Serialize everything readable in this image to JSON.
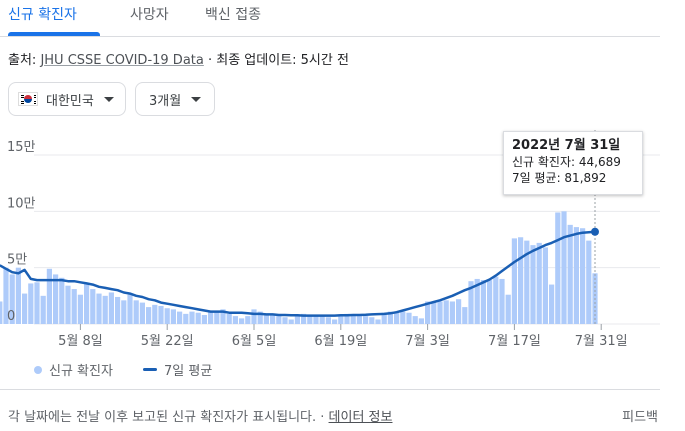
{
  "tabs": [
    {
      "label": "신규 확진자",
      "active": true
    },
    {
      "label": "사망자",
      "active": false
    },
    {
      "label": "백신 접종",
      "active": false
    }
  ],
  "source": {
    "prefix": "출처: ",
    "link": "JHU CSSE COVID-19 Data",
    "suffix": " · 최종 업데이트: 5시간 전"
  },
  "filters": {
    "country": "대한민국",
    "period": "3개월"
  },
  "tooltip": {
    "date": "2022년 7월 31일",
    "cases_line": "신규 확진자: 44,689",
    "avg_line": "7일 평균: 81,892"
  },
  "legend": {
    "cases": "신규 확진자",
    "avg": "7일 평균"
  },
  "footer": {
    "text": "각 날짜에는 전날 이후 보고된 신규 확진자가 표시됩니다. · ",
    "link": "데이터 정보",
    "feedback": "피드백"
  },
  "colors": {
    "accent": "#1a73e8",
    "bars": "#aecbfa",
    "line": "#1a5fb4",
    "grid": "#e8eaed"
  },
  "chart_data": {
    "type": "bar",
    "x_start": "2022-05-01",
    "x_end": "2022-07-31",
    "ylim": [
      0,
      150000
    ],
    "yticks": [
      {
        "value": 0,
        "label": "0"
      },
      {
        "value": 50000,
        "label": "5만"
      },
      {
        "value": 100000,
        "label": "10만"
      },
      {
        "value": 150000,
        "label": "15만"
      }
    ],
    "xticks": [
      {
        "date": "2022-05-08",
        "label": "5월 8일"
      },
      {
        "date": "2022-05-22",
        "label": "5월 22일"
      },
      {
        "date": "2022-06-05",
        "label": "6월 5일"
      },
      {
        "date": "2022-06-19",
        "label": "6월 19일"
      },
      {
        "date": "2022-07-03",
        "label": "7월 3일"
      },
      {
        "date": "2022-07-17",
        "label": "7월 17일"
      },
      {
        "date": "2022-07-31",
        "label": "7월 31일"
      }
    ],
    "series": [
      {
        "name": "신규 확진자",
        "type": "bar",
        "values": [
          20000,
          50000,
          44000,
          50000,
          27000,
          36000,
          37000,
          25000,
          49000,
          44000,
          41000,
          34000,
          31000,
          26000,
          36000,
          31000,
          27000,
          25000,
          28000,
          24000,
          21000,
          26000,
          21000,
          19000,
          15000,
          17000,
          16000,
          14000,
          13000,
          11000,
          9000,
          11000,
          10000,
          8000,
          12000,
          11000,
          13000,
          9000,
          7000,
          5000,
          7000,
          13000,
          11000,
          9000,
          8000,
          7000,
          6000,
          4000,
          7000,
          9000,
          8000,
          7000,
          7000,
          6000,
          4000,
          8000,
          9000,
          8000,
          7000,
          7000,
          6000,
          4000,
          10000,
          11000,
          10000,
          11000,
          10000,
          7000,
          5000,
          20000,
          20000,
          20000,
          21000,
          20000,
          22000,
          15000,
          38000,
          40000,
          39000,
          39000,
          42000,
          40000,
          26000,
          76000,
          77000,
          74000,
          70000,
          72000,
          68000,
          35000,
          99000,
          100000,
          88000,
          86000,
          85000,
          74000,
          45000
        ],
        "x_start": "2022-04-25"
      },
      {
        "name": "7일 평균",
        "type": "line",
        "x_start": "2022-04-25",
        "values": [
          52000,
          49000,
          46000,
          45000,
          48000,
          40000,
          39000,
          39000,
          39000,
          39000,
          39000,
          38000,
          38000,
          37000,
          36000,
          35000,
          33000,
          32000,
          31000,
          30000,
          28000,
          27000,
          25000,
          24000,
          22000,
          21000,
          19000,
          18000,
          17000,
          16000,
          15000,
          14000,
          13000,
          12000,
          11000,
          11000,
          11000,
          10000,
          10000,
          10000,
          9500,
          9000,
          9000,
          8500,
          8500,
          8000,
          8000,
          7800,
          7800,
          7500,
          7500,
          7500,
          7500,
          7500,
          7500,
          7800,
          7800,
          8000,
          8000,
          8200,
          8500,
          8800,
          9000,
          9500,
          10500,
          12000,
          13500,
          15000,
          16500,
          18000,
          19500,
          21000,
          23000,
          25000,
          27500,
          30000,
          32000,
          34500,
          37000,
          39500,
          43000,
          47000,
          51000,
          55000,
          58500,
          62000,
          65000,
          67500,
          70000,
          72000,
          74500,
          77000,
          78500,
          80000,
          81000,
          81500,
          81892
        ]
      }
    ]
  }
}
